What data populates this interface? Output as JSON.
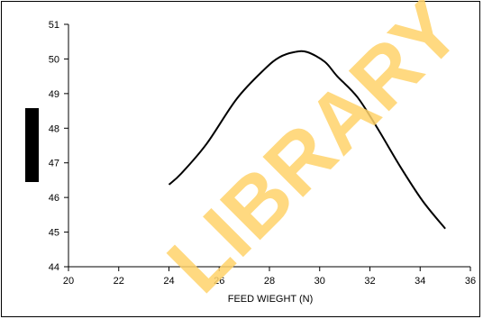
{
  "watermark": "LIBRARY",
  "chart_data": {
    "type": "line",
    "title": "",
    "xlabel": "FEED WIEGHT (N)",
    "ylabel": "",
    "xlim": [
      20,
      36
    ],
    "ylim": [
      44,
      51
    ],
    "x_ticks": [
      20,
      22,
      24,
      26,
      28,
      30,
      32,
      34,
      36
    ],
    "y_ticks": [
      44,
      45,
      46,
      47,
      48,
      49,
      50,
      51
    ],
    "grid": false,
    "series": [
      {
        "color": "#000000",
        "x": [
          24,
          24.5,
          25.5,
          26.7,
          27.8,
          28.4,
          29.0,
          29.5,
          30.2,
          30.7,
          31.5,
          32.3,
          33.2,
          34.1,
          35.0
        ],
        "y": [
          46.37,
          46.7,
          47.55,
          48.85,
          49.7,
          50.05,
          50.2,
          50.2,
          49.92,
          49.5,
          48.9,
          48.0,
          46.9,
          45.9,
          45.1
        ]
      }
    ]
  }
}
